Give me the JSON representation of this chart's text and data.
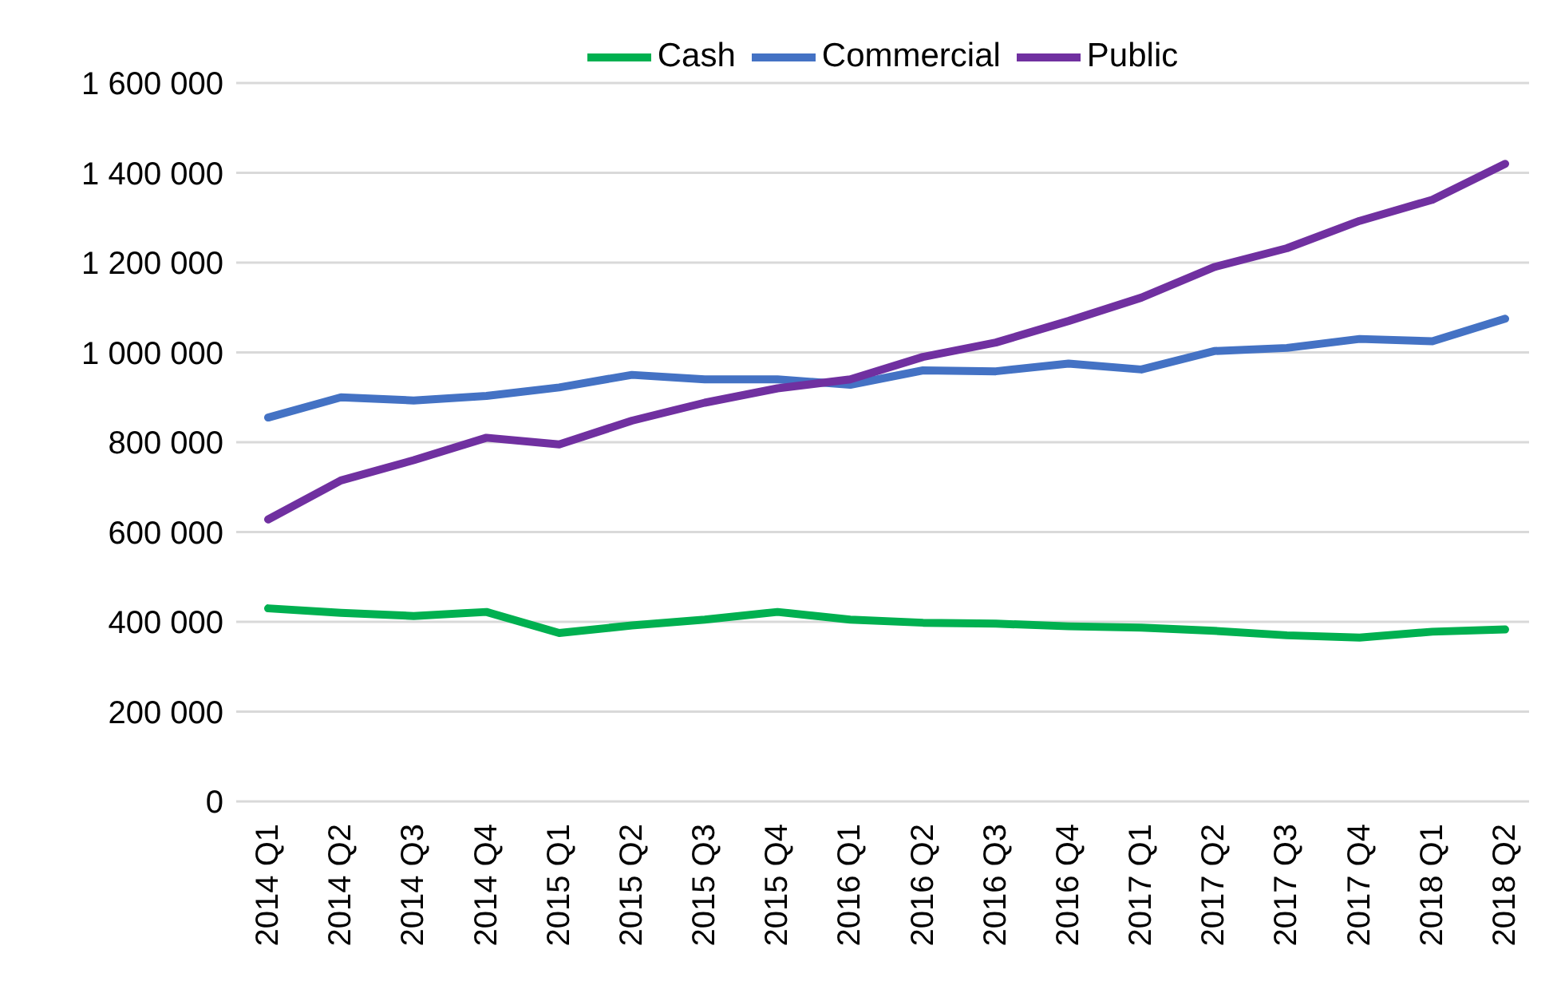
{
  "chart_data": {
    "type": "line",
    "categories": [
      "2014 Q1",
      "2014 Q2",
      "2014 Q3",
      "2014 Q4",
      "2015 Q1",
      "2015 Q2",
      "2015 Q3",
      "2015 Q4",
      "2016 Q1",
      "2016 Q2",
      "2016 Q3",
      "2016 Q4",
      "2017 Q1",
      "2017 Q2",
      "2017 Q3",
      "2017 Q4",
      "2018 Q1",
      "2018 Q2"
    ],
    "series": [
      {
        "name": "Cash",
        "color": "#00b050",
        "values": [
          430000,
          420000,
          413000,
          422000,
          375000,
          392000,
          405000,
          422000,
          405000,
          398000,
          396000,
          390000,
          387000,
          380000,
          370000,
          365000,
          378000,
          383000
        ]
      },
      {
        "name": "Commercial",
        "color": "#4472c4",
        "values": [
          855000,
          900000,
          893000,
          903000,
          922000,
          950000,
          940000,
          940000,
          928000,
          960000,
          958000,
          975000,
          962000,
          1003000,
          1010000,
          1030000,
          1025000,
          1075000
        ]
      },
      {
        "name": "Public",
        "color": "#7030a0",
        "values": [
          628000,
          715000,
          760000,
          810000,
          795000,
          848000,
          888000,
          920000,
          940000,
          990000,
          1022000,
          1070000,
          1122000,
          1190000,
          1232000,
          1293000,
          1340000,
          1420000
        ]
      }
    ],
    "ylim": [
      0,
      1600000
    ],
    "yticks": [
      {
        "value": 0,
        "label": "0"
      },
      {
        "value": 200000,
        "label": "200 000"
      },
      {
        "value": 400000,
        "label": "400 000"
      },
      {
        "value": 600000,
        "label": "600 000"
      },
      {
        "value": 800000,
        "label": "800 000"
      },
      {
        "value": 1000000,
        "label": "1 000 000"
      },
      {
        "value": 1200000,
        "label": "1 200 000"
      },
      {
        "value": 1400000,
        "label": "1 400 000"
      },
      {
        "value": 1600000,
        "label": "1 600 000"
      }
    ],
    "grid": "y",
    "legend": "top",
    "marker": "none",
    "line_style": "solid"
  }
}
